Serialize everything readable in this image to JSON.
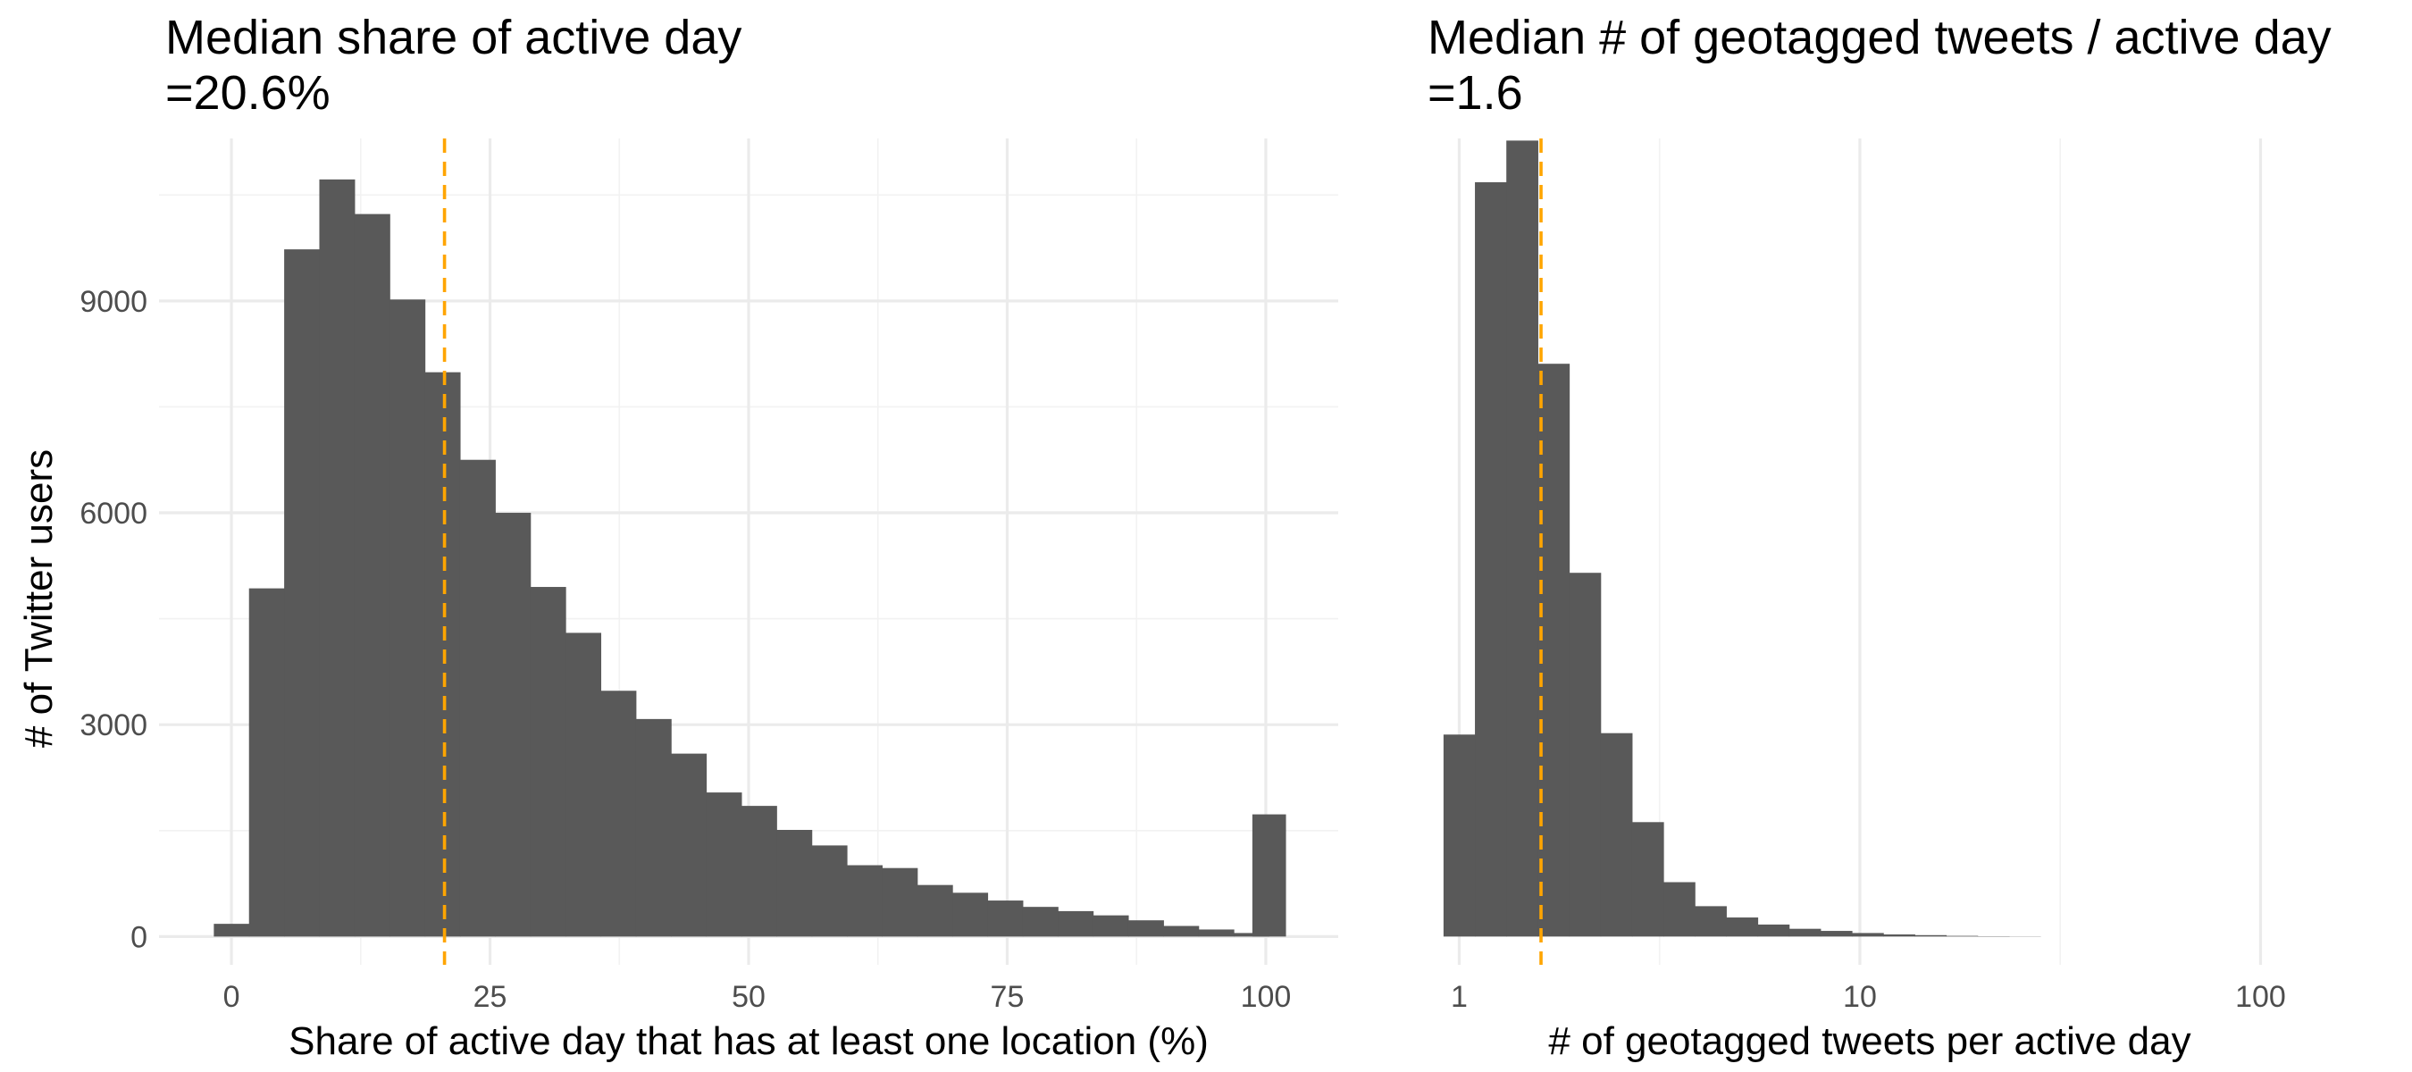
{
  "chart_data": [
    {
      "type": "histogram",
      "title_line1": "Median share of active day",
      "title_line2": " =20.6%",
      "xlabel": "Share of active day that has at least one location (%)",
      "ylabel": "# of Twitter users",
      "xlim": [
        -7,
        107
      ],
      "ylim": [
        -400,
        11300
      ],
      "x_ticks": [
        0,
        25,
        50,
        75,
        100
      ],
      "x_tick_labels": [
        "0",
        "25",
        "50",
        "75",
        "100"
      ],
      "y_ticks": [
        0,
        3000,
        6000,
        9000
      ],
      "y_tick_labels": [
        "0",
        "3000",
        "6000",
        "9000"
      ],
      "x_minor_ticks": [
        12.5,
        37.5,
        62.5,
        87.5
      ],
      "y_minor_ticks": [
        1500,
        4500,
        7500,
        10500
      ],
      "bin_width": 3.4,
      "bin_centers": [
        0.0,
        3.4,
        6.8,
        10.2,
        13.6,
        17.0,
        20.4,
        23.8,
        27.2,
        30.6,
        34.0,
        37.4,
        40.8,
        44.2,
        47.6,
        51.0,
        54.4,
        57.8,
        61.2,
        64.6,
        68.0,
        71.4,
        74.8,
        78.2,
        81.6,
        85.0,
        88.4,
        91.8,
        95.2,
        98.6,
        100.2
      ],
      "counts": [
        180,
        4930,
        9730,
        10720,
        10230,
        9020,
        7990,
        6750,
        6000,
        4950,
        4300,
        3480,
        3080,
        2590,
        2040,
        1850,
        1510,
        1290,
        1010,
        970,
        730,
        620,
        510,
        420,
        360,
        300,
        230,
        150,
        100,
        50,
        1730
      ],
      "median": 20.6,
      "median_color": "#ffa500",
      "bar_color": "#595959",
      "grid": true
    },
    {
      "type": "histogram",
      "title_line1": "Median # of geotagged tweets / active day",
      "title_line2": " =1.6",
      "xlabel": "# of geotagged tweets per active day",
      "ylabel": "",
      "x_scale": "log10",
      "xlim": [
        0.8,
        140
      ],
      "ylim": [
        -400,
        11300
      ],
      "x_ticks": [
        1,
        10,
        100
      ],
      "x_tick_labels": [
        "1",
        "10",
        "100"
      ],
      "x_minor_ticks": [
        3.162,
        31.62
      ],
      "y_major_grid": [
        0,
        3000,
        6000,
        9000
      ],
      "y_minor_grid": [
        1500,
        4500,
        7500,
        10500
      ],
      "bin_log_width": 0.0784,
      "bin_log_start": -0.0392,
      "counts": [
        2860,
        10680,
        11270,
        8110,
        5150,
        2880,
        1620,
        770,
        430,
        270,
        170,
        110,
        80,
        50,
        30,
        20,
        10,
        5,
        3
      ],
      "median": 1.6,
      "median_color": "#ffa500",
      "bar_color": "#595959",
      "grid": true
    }
  ]
}
